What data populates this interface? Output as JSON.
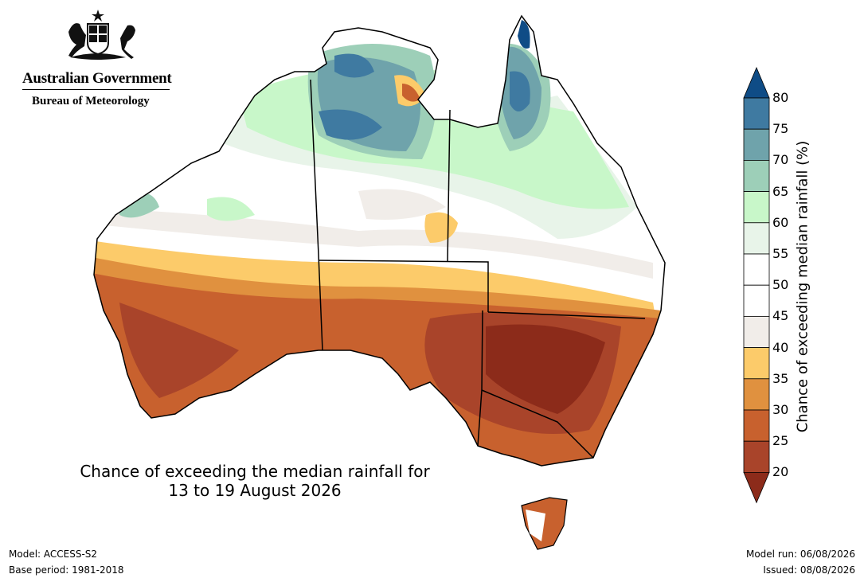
{
  "header": {
    "government": "Australian Government",
    "bureau": "Bureau of Meteorology"
  },
  "map": {
    "title_line1": "Chance of exceeding the median rainfall for",
    "title_line2": "13 to 19 August 2026"
  },
  "legend": {
    "title": "Chance of exceeding median rainfall (%)",
    "ticks": [
      "80",
      "75",
      "70",
      "65",
      "60",
      "55",
      "50",
      "45",
      "40",
      "35",
      "30",
      "25",
      "20"
    ],
    "bins": [
      {
        "range": ">80",
        "color": "#0f4c86"
      },
      {
        "range": "75-80",
        "color": "#3f7aa1"
      },
      {
        "range": "70-75",
        "color": "#6fa3ab"
      },
      {
        "range": "65-70",
        "color": "#9dcfb8"
      },
      {
        "range": "60-65",
        "color": "#c8f7c9"
      },
      {
        "range": "55-60",
        "color": "#e8f4e9"
      },
      {
        "range": "50-55",
        "color": "#ffffff"
      },
      {
        "range": "45-50",
        "color": "#ffffff"
      },
      {
        "range": "40-45",
        "color": "#f1ede9"
      },
      {
        "range": "35-40",
        "color": "#fccb6a"
      },
      {
        "range": "30-35",
        "color": "#e0913f"
      },
      {
        "range": "25-30",
        "color": "#c8612e"
      },
      {
        "range": "20-25",
        "color": "#a9442a"
      },
      {
        "range": "<20",
        "color": "#8c2b1a"
      }
    ]
  },
  "footer": {
    "model": "Model: ACCESS-S2",
    "base_period": "Base period: 1981-2018",
    "model_run": "Model run: 06/08/2026",
    "issued": "Issued: 08/08/2026"
  }
}
